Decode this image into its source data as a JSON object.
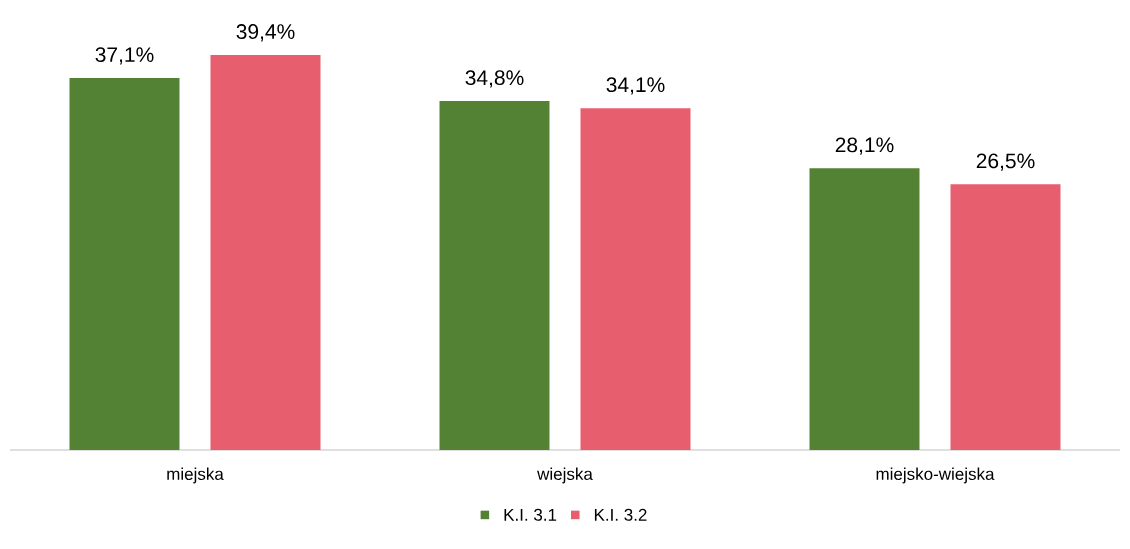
{
  "chart_data": {
    "type": "bar",
    "categories": [
      "miejska",
      "wiejska",
      "miejsko-wiejska"
    ],
    "series": [
      {
        "name": "K.I. 3.1",
        "color": "#548235",
        "values": [
          37.1,
          34.8,
          28.1
        ],
        "value_labels": [
          "37,1%",
          "34,8%",
          "28,1%"
        ]
      },
      {
        "name": "K.I. 3.2",
        "color": "#e75e6e",
        "values": [
          39.4,
          34.1,
          26.5
        ],
        "value_labels": [
          "39,4%",
          "34,1%",
          "26,5%"
        ]
      }
    ],
    "legend": "bottom"
  }
}
